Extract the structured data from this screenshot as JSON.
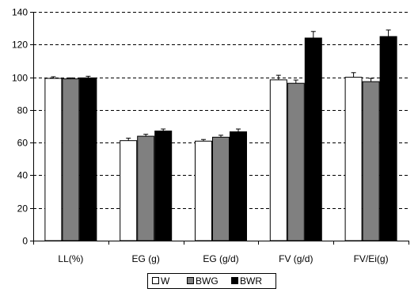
{
  "chart_data": {
    "type": "bar",
    "title": "",
    "xlabel": "",
    "ylabel": "",
    "categories": [
      "LL(%)",
      "EG (g)",
      "EG (g/d)",
      "FV (g/d)",
      "FV/Ei(g)"
    ],
    "series": [
      {
        "name": "W",
        "values": [
          99.3,
          61.2,
          60.9,
          98.4,
          100.0
        ],
        "errors": [
          1.0,
          1.5,
          1.0,
          2.8,
          2.8
        ],
        "color": "#ffffff"
      },
      {
        "name": "BWG",
        "values": [
          99.0,
          63.9,
          63.3,
          96.3,
          97.3
        ],
        "errors": [
          0.6,
          1.2,
          1.2,
          2.0,
          2.0
        ],
        "color": "#808080"
      },
      {
        "name": "BWR",
        "values": [
          99.6,
          67.1,
          66.6,
          124.0,
          124.9
        ],
        "errors": [
          1.0,
          1.2,
          1.7,
          4.0,
          4.0
        ],
        "color": "#000000"
      }
    ],
    "ylim": [
      0,
      140
    ],
    "yticks": [
      0,
      20,
      40,
      60,
      80,
      100,
      120,
      140
    ],
    "grid": "dashed horizontal",
    "legend": "bottom"
  }
}
